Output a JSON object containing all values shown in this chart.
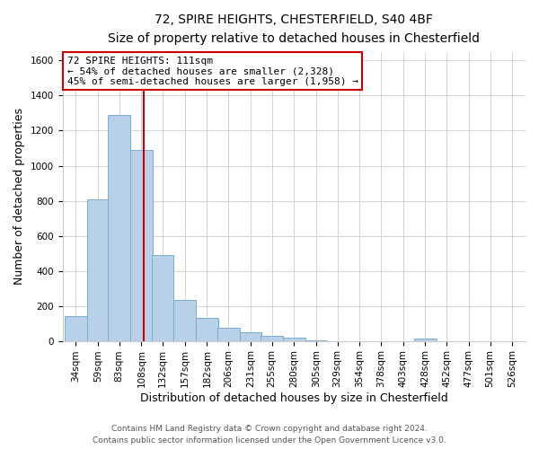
{
  "title": "72, SPIRE HEIGHTS, CHESTERFIELD, S40 4BF",
  "subtitle": "Size of property relative to detached houses in Chesterfield",
  "xlabel": "Distribution of detached houses by size in Chesterfield",
  "ylabel": "Number of detached properties",
  "bar_color": "#b8d0e8",
  "bar_edge_color": "#7aaed0",
  "background_color": "#ffffff",
  "grid_color": "#cccccc",
  "categories": [
    "34sqm",
    "59sqm",
    "83sqm",
    "108sqm",
    "132sqm",
    "157sqm",
    "182sqm",
    "206sqm",
    "231sqm",
    "255sqm",
    "280sqm",
    "305sqm",
    "329sqm",
    "354sqm",
    "378sqm",
    "403sqm",
    "428sqm",
    "452sqm",
    "477sqm",
    "501sqm",
    "526sqm"
  ],
  "values": [
    140,
    810,
    1290,
    1090,
    490,
    235,
    130,
    75,
    50,
    28,
    18,
    5,
    0,
    0,
    0,
    0,
    13,
    0,
    0,
    0,
    0
  ],
  "ylim": [
    0,
    1650
  ],
  "yticks": [
    0,
    200,
    400,
    600,
    800,
    1000,
    1200,
    1400,
    1600
  ],
  "annotation_title": "72 SPIRE HEIGHTS: 111sqm",
  "annotation_line1": "← 54% of detached houses are smaller (2,328)",
  "annotation_line2": "45% of semi-detached houses are larger (1,958) →",
  "annotation_box_color": "#ffffff",
  "annotation_box_edge_color": "#cc0000",
  "red_line_color": "#cc0000",
  "footer_line1": "Contains HM Land Registry data © Crown copyright and database right 2024.",
  "footer_line2": "Contains public sector information licensed under the Open Government Licence v3.0.",
  "bin_width": 25,
  "bin_centers": [
    34,
    59,
    83,
    108,
    132,
    157,
    182,
    206,
    231,
    255,
    280,
    305,
    329,
    354,
    378,
    403,
    428,
    452,
    477,
    501,
    526
  ],
  "red_line_sqm": 111
}
